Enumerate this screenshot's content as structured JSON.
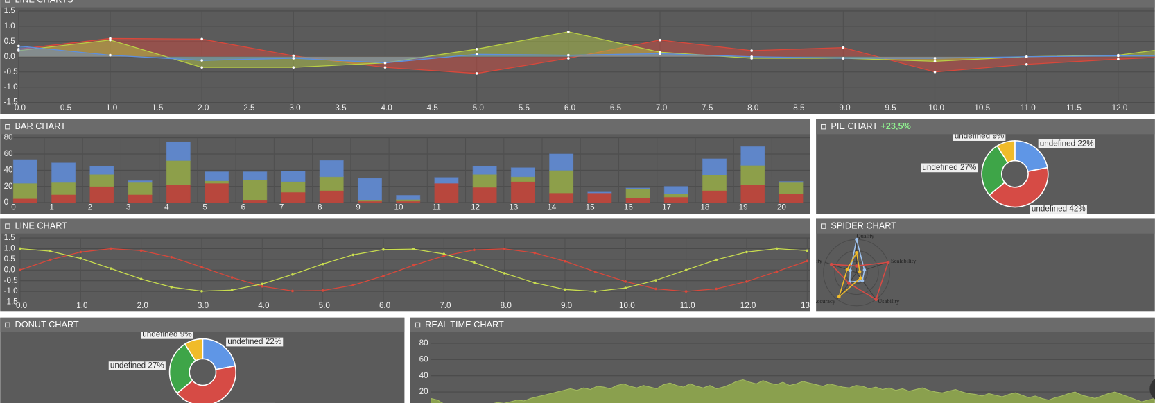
{
  "chart_data": [
    {
      "type": "line",
      "title": "LINE CHARTS",
      "fill": true,
      "grid": true,
      "x": [
        0,
        1,
        2,
        3,
        4,
        5,
        6,
        7,
        8,
        9,
        10,
        11,
        12,
        13
      ],
      "series": [
        {
          "color": "#d9483b",
          "values": [
            0.25,
            0.6,
            0.58,
            0.03,
            -0.35,
            -0.55,
            -0.05,
            0.55,
            0.2,
            0.3,
            -0.5,
            -0.25,
            -0.08,
            0.05
          ]
        },
        {
          "color": "#b9cf45",
          "values": [
            0.2,
            0.55,
            -0.35,
            -0.35,
            -0.2,
            0.25,
            0.82,
            0.15,
            -0.05,
            -0.05,
            -0.15,
            0,
            0.05,
            0.45
          ]
        },
        {
          "color": "#5d8fe0",
          "values": [
            0.35,
            0.05,
            -0.12,
            -0.05,
            -0.2,
            0.08,
            0.05,
            0.1,
            0,
            -0.05,
            -0.05,
            0,
            0.03,
            0.05
          ]
        }
      ],
      "xlim": [
        0,
        12.4
      ],
      "ylim": [
        -1.5,
        1.5
      ],
      "xticks": [
        {
          "value": 0,
          "label": "0.0"
        },
        0.5,
        {
          "value": 1,
          "label": "1.0"
        },
        1.5,
        {
          "value": 2,
          "label": "2.0"
        },
        2.5,
        {
          "value": 3,
          "label": "3.0"
        },
        3.5,
        {
          "value": 4,
          "label": "4.0"
        },
        4.5,
        {
          "value": 5,
          "label": "5.0"
        },
        5.5,
        {
          "value": 6,
          "label": "6.0"
        },
        6.5,
        {
          "value": 7,
          "label": "7.0"
        },
        7.5,
        {
          "value": 8,
          "label": "8.0"
        },
        8.5,
        {
          "value": 9,
          "label": "9.0"
        },
        9.5,
        {
          "value": 10,
          "label": "10.0"
        },
        10.5,
        {
          "value": 11,
          "label": "11.0"
        },
        11.5,
        {
          "value": 12,
          "label": "12.0"
        }
      ],
      "yticks": [
        1.5,
        {
          "value": 1,
          "label": "1.0"
        },
        0.5,
        {
          "value": 0,
          "label": "0.0"
        },
        -0.5,
        {
          "value": -1,
          "label": "-1.0"
        },
        -1.5
      ]
    },
    {
      "type": "bar",
      "title": "BAR CHART",
      "grid": true,
      "categories": [
        "0",
        "1",
        "2",
        "3",
        "4",
        "5",
        "6",
        "7",
        "8",
        "9",
        "10",
        "11",
        "12",
        "13",
        "14",
        "15",
        "16",
        "17",
        "18",
        "19",
        "20"
      ],
      "series": [
        {
          "color": "#b8473d",
          "values": [
            5,
            10,
            20,
            10,
            22,
            24,
            3,
            13,
            15,
            2,
            2,
            24,
            19,
            26,
            12,
            12,
            6,
            7,
            15,
            22,
            11
          ]
        },
        {
          "color": "#8d9f4a",
          "values": [
            19,
            15,
            15,
            15,
            30,
            3,
            25,
            13,
            17,
            1,
            2,
            0,
            16,
            6,
            28,
            0,
            11,
            4,
            19,
            24,
            14
          ]
        },
        {
          "color": "#5f86c9",
          "values": [
            29,
            24,
            10,
            2,
            23,
            11,
            10,
            13,
            20,
            27,
            5,
            7,
            10,
            11,
            20,
            1,
            1,
            9,
            20,
            23,
            1
          ]
        }
      ],
      "ylim": [
        0,
        80
      ],
      "yticks": [
        0,
        20,
        40,
        60,
        80
      ]
    },
    {
      "type": "pie",
      "title": "PIE CHART",
      "annotation": "+23,5%",
      "values": [
        22,
        42,
        27,
        9
      ],
      "colors": [
        "#5f96e6",
        "#d64b45",
        "#3ea548",
        "#f0bb2a"
      ],
      "value_labels": [
        "undefined 22%",
        "undefined 42%",
        "undefined 27%",
        "undefined 9%"
      ]
    },
    {
      "type": "line",
      "title": "LINE CHART",
      "fill": false,
      "grid": true,
      "x": [
        0,
        0.5,
        1,
        1.5,
        2,
        2.5,
        3,
        3.5,
        4,
        4.5,
        5,
        5.5,
        6,
        6.5,
        7,
        7.5,
        8,
        8.5,
        9,
        9.5,
        10,
        10.5,
        11,
        11.5,
        12,
        12.5,
        13
      ],
      "series": [
        {
          "color": "#d9483b",
          "values": [
            0,
            0.48,
            0.84,
            1.0,
            0.91,
            0.6,
            0.14,
            -0.35,
            -0.76,
            -0.98,
            -0.96,
            -0.71,
            -0.28,
            0.22,
            0.66,
            0.94,
            0.99,
            0.8,
            0.41,
            -0.08,
            -0.54,
            -0.88,
            -1.0,
            -0.88,
            -0.54,
            -0.07,
            0.42
          ]
        },
        {
          "color": "#c9dd4f",
          "values": [
            1.0,
            0.88,
            0.54,
            0.07,
            -0.42,
            -0.8,
            -0.99,
            -0.94,
            -0.65,
            -0.21,
            0.28,
            0.71,
            0.96,
            0.98,
            0.75,
            0.35,
            -0.15,
            -0.6,
            -0.91,
            -1.0,
            -0.84,
            -0.48,
            0,
            0.48,
            0.84,
            1.0,
            0.91
          ]
        }
      ],
      "xlim": [
        0,
        13.05
      ],
      "ylim": [
        -1.5,
        1.5
      ],
      "xticks": [
        {
          "value": 0,
          "label": "0.0"
        },
        {
          "value": 1,
          "label": "1.0"
        },
        {
          "value": 2,
          "label": "2.0"
        },
        {
          "value": 3,
          "label": "3.0"
        },
        {
          "value": 4,
          "label": "4.0"
        },
        {
          "value": 5,
          "label": "5.0"
        },
        {
          "value": 6,
          "label": "6.0"
        },
        {
          "value": 7,
          "label": "7.0"
        },
        {
          "value": 8,
          "label": "8.0"
        },
        {
          "value": 9,
          "label": "9.0"
        },
        {
          "value": 10,
          "label": "10.0"
        },
        {
          "value": 11,
          "label": "11.0"
        },
        {
          "value": 12,
          "label": "12.0"
        },
        {
          "value": 13,
          "label": "13.0"
        }
      ],
      "yticks": [
        1.5,
        {
          "value": 1,
          "label": "1.0"
        },
        0.5,
        {
          "value": 0,
          "label": "0.0"
        },
        -0.5,
        {
          "value": -1,
          "label": "-1.0"
        },
        -1.5
      ]
    },
    {
      "type": "radar",
      "title": "SPIDER CHART",
      "categories": [
        "Quality",
        "Scalability",
        "Usability",
        "Accuracy",
        "Flexibility"
      ],
      "rlim": [
        0,
        100
      ],
      "series": [
        {
          "color": "#9fc3f0",
          "values": [
            100,
            25,
            30,
            35,
            20
          ]
        },
        {
          "color": "#d64b45",
          "values": [
            20,
            100,
            100,
            40,
            80
          ]
        },
        {
          "color": "#f0bb2a",
          "values": [
            60,
            10,
            20,
            90,
            30
          ]
        }
      ]
    },
    {
      "type": "pie",
      "title": "DONUT CHART",
      "values": [
        22,
        42,
        27,
        9
      ],
      "colors": [
        "#5f96e6",
        "#d64b45",
        "#3ea548",
        "#f0bb2a"
      ],
      "value_labels": [
        "undefined 22%",
        "undefined 42%",
        "undefined 27%",
        "undefined 9%"
      ]
    },
    {
      "type": "area",
      "title": "REAL TIME CHART",
      "color": "#8aa04e",
      "grid": true,
      "values": [
        12,
        10,
        5,
        3,
        4,
        6,
        5,
        4,
        3,
        5,
        7,
        6,
        8,
        10,
        9,
        12,
        14,
        16,
        18,
        20,
        22,
        24,
        22,
        25,
        23,
        27,
        26,
        24,
        28,
        30,
        27,
        25,
        28,
        26,
        24,
        29,
        31,
        28,
        26,
        30,
        27,
        25,
        28,
        24,
        26,
        29,
        33,
        35,
        32,
        30,
        34,
        31,
        29,
        32,
        28,
        30,
        33,
        31,
        29,
        27,
        30,
        28,
        26,
        25,
        28,
        27,
        24,
        26,
        23,
        25,
        22,
        24,
        21,
        23,
        25,
        22,
        20,
        19,
        21,
        23,
        20,
        18,
        17,
        15,
        18,
        16,
        14,
        17,
        19,
        16,
        13,
        15,
        12,
        10,
        13,
        15,
        18,
        20,
        16,
        14,
        12,
        15,
        18,
        20,
        17,
        14,
        11,
        8,
        10,
        12
      ],
      "ylim": [
        0,
        90
      ],
      "yticks": [
        20,
        40,
        60,
        80
      ]
    }
  ]
}
